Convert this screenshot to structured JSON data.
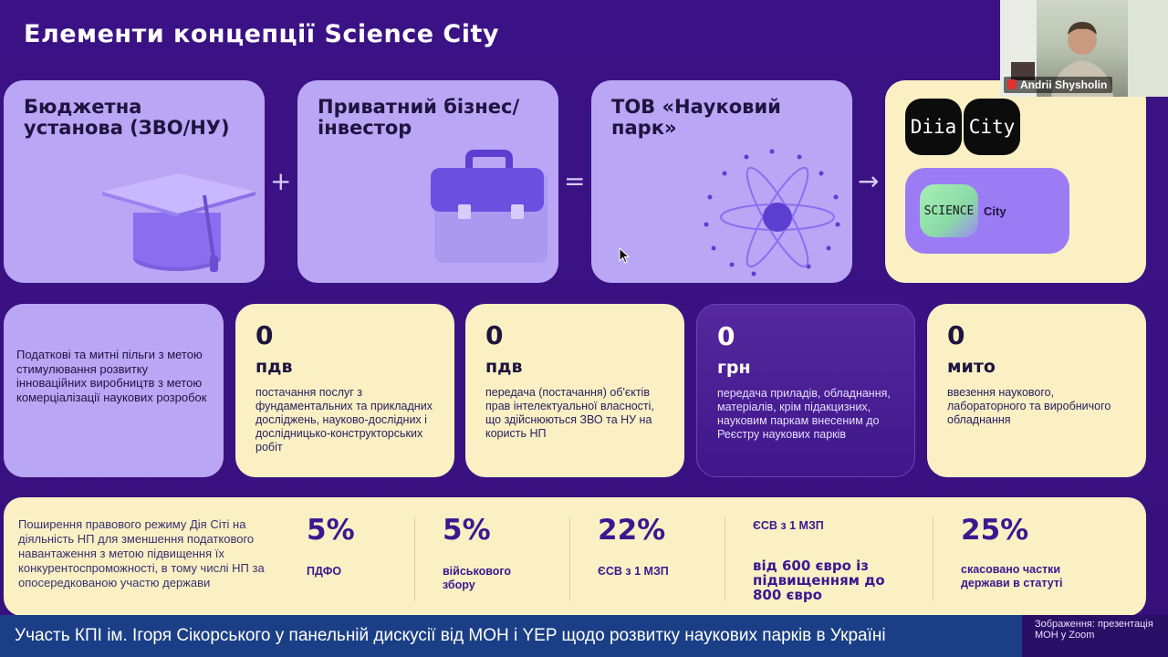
{
  "slide": {
    "title": "Елементи концепції Science City",
    "row1": {
      "card1_title": "Бюджетна установа (ЗВО/НУ)",
      "plus": "+",
      "card2_title": "Приватний бізнес/інвестор",
      "equals": "=",
      "card3_title": "ТОВ «Науковий парк»",
      "arrow": "→",
      "diia_left": "Diia",
      "diia_right": "City",
      "science_badge": "SCIENCE",
      "science_city": "City"
    },
    "row2": {
      "left_desc": "Податкові та митні пільги з метою стимулювання розвитку інноваційних виробництв з метою комерціалізації наукових розробок",
      "items": [
        {
          "value": "0",
          "unit": "пдв",
          "desc": "постачання послуг з фундаментальних та прикладних досліджень, науково-дослідних і дослідницько-конструкторських робіт"
        },
        {
          "value": "0",
          "unit": "пдв",
          "desc": "передача (постачання) об'єктів прав інтелектуальної власності, що здійснюються ЗВО та НУ на користь НП"
        },
        {
          "value": "0",
          "unit": "грн",
          "desc": "передача приладів, обладнання, матеріалів, крім підакцизних, науковим паркам внесеним до Реєстру наукових парків"
        },
        {
          "value": "0",
          "unit": "мито",
          "desc": "ввезення наукового, лабораторного та виробничого обладнання"
        }
      ]
    },
    "row3": {
      "desc": "Поширення правового режиму Дія Сіті на діяльність НП для зменшення податкового навантаження з метою підвищення їх конкурентоспроможності, в тому числі НП за опосередкованою участю держави",
      "items": [
        {
          "value": "5%",
          "label": "ПДФО"
        },
        {
          "value": "5%",
          "label": "військового збору"
        },
        {
          "value": "22%",
          "label": "ЄСВ з 1 МЗП"
        },
        {
          "value": "",
          "label": "ЄСВ з 1 МЗП",
          "extra": "від 600 євро із підвищенням до 800 євро"
        },
        {
          "value": "25%",
          "label": "скасовано частки держави в статуті"
        }
      ]
    }
  },
  "caption": "Участь КПІ ім. Ігоря Сікорського у панельній дискусії від МОН і YEP щодо розвитку наукових парків в Україні",
  "credit": "Зображення: презентація МОН у Zoom",
  "video": {
    "participant_name": "Andrii Shysholin"
  },
  "colors": {
    "background": "#3b1285",
    "lavender": "#b9a6f5",
    "cream": "#faf0c3",
    "dark_card": "#4a1f9a",
    "caption_bar": "#1b3f86"
  }
}
